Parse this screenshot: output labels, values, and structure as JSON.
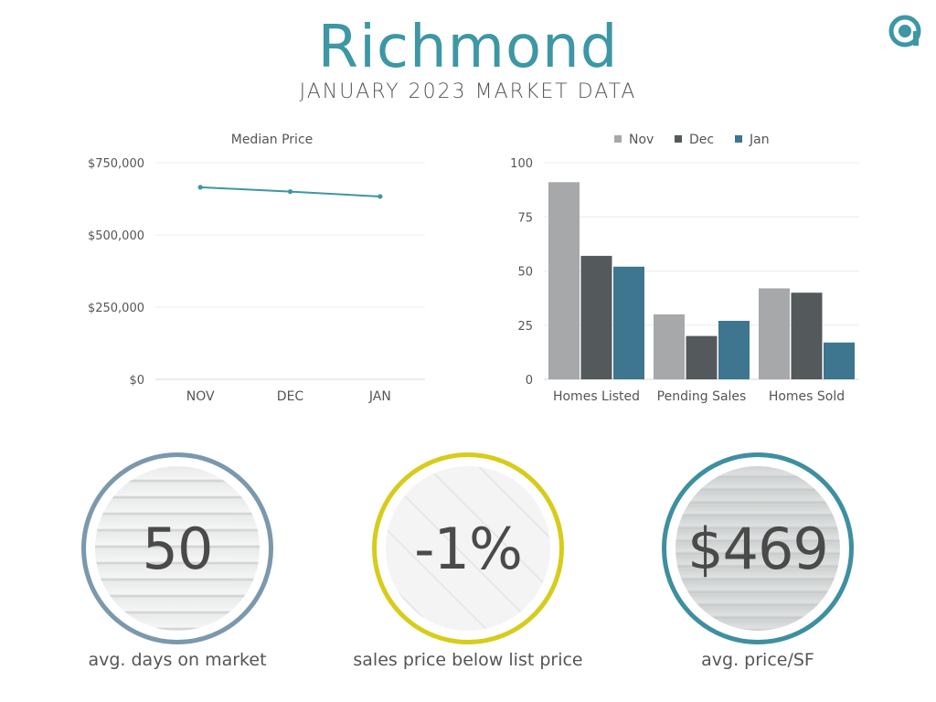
{
  "header": {
    "title": "Richmond",
    "subtitle": "JANUARY 2023 MARKET DATA"
  },
  "colors": {
    "accent": "#3d97a4",
    "nov": "#a6a8aa",
    "dec": "#54595c",
    "jan": "#3d768e"
  },
  "logo": {
    "icon": "a-logo-icon"
  },
  "chart_data": [
    {
      "type": "line",
      "title": "Median Price",
      "categories": [
        "NOV",
        "DEC",
        "JAN"
      ],
      "series": [
        {
          "values": [
            665000,
            650000,
            633000
          ]
        }
      ],
      "ylim": [
        0,
        750000
      ],
      "yticks": [
        0,
        250000,
        500000,
        750000
      ],
      "ytick_labels": [
        "$0",
        "$250,000",
        "$500,000",
        "$750,000"
      ],
      "grid": true
    },
    {
      "type": "bar",
      "categories": [
        "Homes Listed",
        "Pending Sales",
        "Homes Sold"
      ],
      "series": [
        {
          "name": "Nov",
          "values": [
            91,
            30,
            42
          ]
        },
        {
          "name": "Dec",
          "values": [
            57,
            20,
            40
          ]
        },
        {
          "name": "Jan",
          "values": [
            52,
            27,
            17
          ]
        }
      ],
      "ylim": [
        0,
        100
      ],
      "yticks": [
        0,
        25,
        50,
        75,
        100
      ],
      "ytick_labels": [
        "0",
        "25",
        "50",
        "75",
        "100"
      ],
      "legend": "top-center",
      "grid": true
    }
  ],
  "stats": [
    {
      "value": "50",
      "label": "avg. days on market"
    },
    {
      "value": "-1%",
      "label": "sales price below list price"
    },
    {
      "value": "$469",
      "label": "avg. price/SF"
    }
  ]
}
